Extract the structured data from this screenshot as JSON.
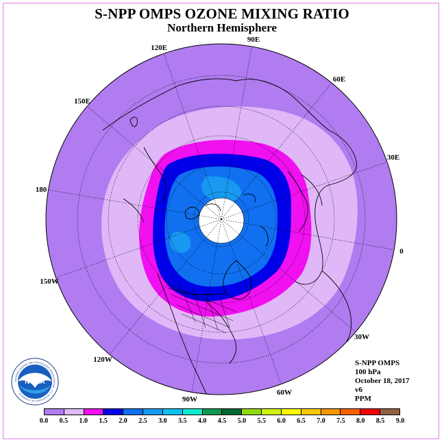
{
  "title": "S-NPP OMPS OZONE MIXING RATIO",
  "subtitle": "Northern Hemisphere",
  "longitude_labels": [
    "90E",
    "60E",
    "30E",
    "0",
    "30W",
    "60W",
    "90W",
    "120W",
    "150W",
    "180",
    "150E",
    "120E"
  ],
  "info": {
    "instrument": "S-NPP OMPS",
    "level": "100 hPa",
    "date": "October 18, 2017",
    "version": "v6",
    "units": "PPM"
  },
  "logo": {
    "text": "NOAA",
    "ring_text": "NATIONAL OCEANIC AND ATMOSPHERIC ADMINISTRATION · U.S. DEPARTMENT OF COMMERCE"
  },
  "colorbar": {
    "ticks": [
      "0.0",
      "0.5",
      "1.0",
      "1.5",
      "2.0",
      "2.5",
      "3.0",
      "3.5",
      "4.0",
      "4.5",
      "5.0",
      "5.5",
      "6.0",
      "6.5",
      "7.0",
      "7.5",
      "8.0",
      "8.5",
      "9.0"
    ],
    "colors": [
      "#b07cf0",
      "#e0b8f8",
      "#f010f0",
      "#0000e8",
      "#1070f0",
      "#1898f0",
      "#10c0f0",
      "#10e8d0",
      "#109850",
      "#006830",
      "#90d810",
      "#d0f010",
      "#f8f800",
      "#f8c800",
      "#f89800",
      "#f86000",
      "#f00000",
      "#906040"
    ]
  },
  "ozone_zones": [
    {
      "range": "0.0-0.5",
      "color": "#b07cf0"
    },
    {
      "range": "0.5-1.0",
      "color": "#e0b8f8"
    },
    {
      "range": "1.0-1.5",
      "color": "#f010f0"
    },
    {
      "range": "1.5-2.0",
      "color": "#0000e8"
    },
    {
      "range": "2.0-2.5",
      "color": "#1070f0"
    },
    {
      "range": "2.5-3.0",
      "color": "#1898f0"
    }
  ],
  "colors": {
    "outer": "#b07cf0",
    "frame": "#e07fe0",
    "nodata": "#ffffff"
  }
}
